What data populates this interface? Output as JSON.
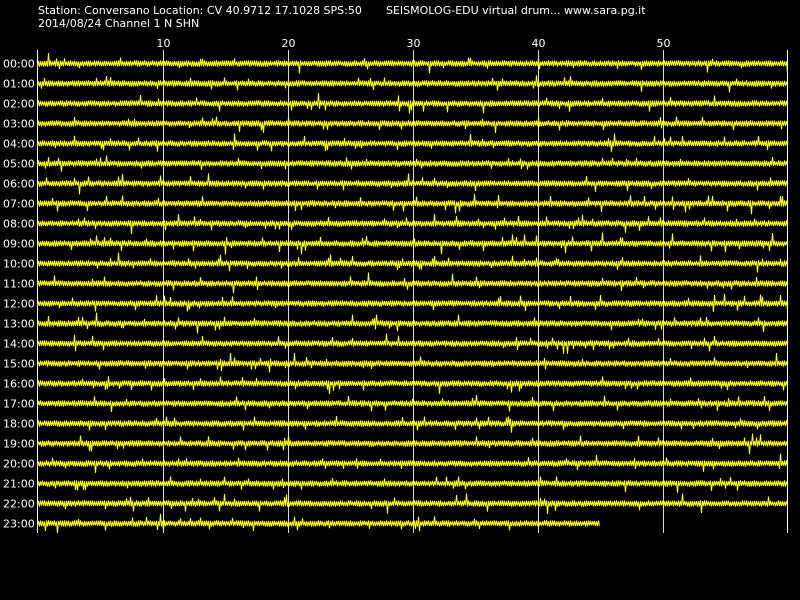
{
  "header": {
    "station_line": "Station: Conversano Location: CV 40.9712 17.1028 SPS:50",
    "program_line": "SEISMOLOG-EDU virtual drum... www.sara.pg.it",
    "date_line": "2014/08/24  Channel 1 N SHN"
  },
  "chart_data": {
    "type": "line",
    "title": "",
    "xlabel": "",
    "ylabel": "",
    "x_range": [
      0,
      60
    ],
    "x_ticks": [
      {
        "value": 10,
        "label": "10"
      },
      {
        "value": 20,
        "label": "20"
      },
      {
        "value": 30,
        "label": "30"
      },
      {
        "value": 40,
        "label": "40"
      },
      {
        "value": 50,
        "label": "50"
      }
    ],
    "grid": "vertical",
    "background_color": "#000000",
    "trace_color": "#ffff00",
    "text_color": "#ffffff",
    "grid_color": "#ffffff",
    "rows": [
      {
        "label": "00:00",
        "end_minute": 60
      },
      {
        "label": "01:00",
        "end_minute": 60
      },
      {
        "label": "02:00",
        "end_minute": 60
      },
      {
        "label": "03:00",
        "end_minute": 60
      },
      {
        "label": "04:00",
        "end_minute": 60
      },
      {
        "label": "05:00",
        "end_minute": 60
      },
      {
        "label": "06:00",
        "end_minute": 60
      },
      {
        "label": "07:00",
        "end_minute": 60
      },
      {
        "label": "08:00",
        "end_minute": 60
      },
      {
        "label": "09:00",
        "end_minute": 60
      },
      {
        "label": "10:00",
        "end_minute": 60
      },
      {
        "label": "11:00",
        "end_minute": 60
      },
      {
        "label": "12:00",
        "end_minute": 60
      },
      {
        "label": "13:00",
        "end_minute": 60
      },
      {
        "label": "14:00",
        "end_minute": 60
      },
      {
        "label": "15:00",
        "end_minute": 60
      },
      {
        "label": "16:00",
        "end_minute": 60
      },
      {
        "label": "17:00",
        "end_minute": 60
      },
      {
        "label": "18:00",
        "end_minute": 60
      },
      {
        "label": "19:00",
        "end_minute": 60
      },
      {
        "label": "20:00",
        "end_minute": 60
      },
      {
        "label": "21:00",
        "end_minute": 60
      },
      {
        "label": "22:00",
        "end_minute": 60
      },
      {
        "label": "23:00",
        "end_minute": 45
      }
    ]
  }
}
